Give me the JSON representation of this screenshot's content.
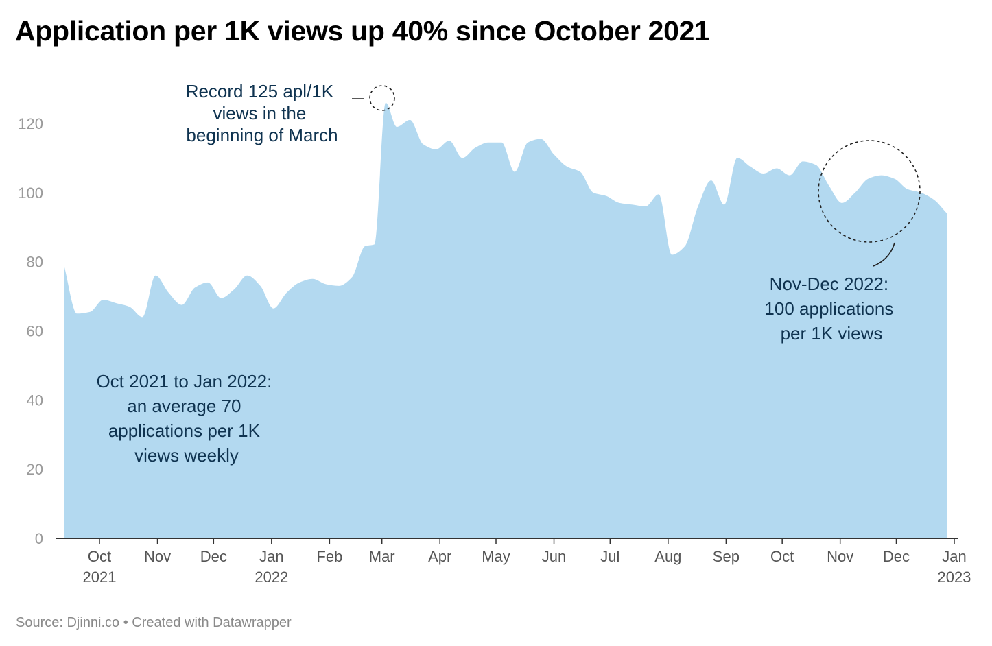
{
  "chart_data": {
    "type": "area",
    "title": "Application per 1K views up 40% since October 2021",
    "xlabel": "",
    "ylabel": "",
    "ylim": [
      0,
      130
    ],
    "yticks": [
      0,
      20,
      40,
      60,
      80,
      100,
      120
    ],
    "grid": false,
    "colors": {
      "area": "#b3d9f0",
      "annotation": "#0f3350",
      "axis": "#333333",
      "tick_text": "#9a9a9a",
      "x_text": "#555555"
    },
    "x_ticks": [
      {
        "date": "2021-10-01",
        "label": "Oct",
        "sublabel": "2021"
      },
      {
        "date": "2021-11-01",
        "label": "Nov"
      },
      {
        "date": "2021-12-01",
        "label": "Dec"
      },
      {
        "date": "2022-01-01",
        "label": "Jan",
        "sublabel": "2022"
      },
      {
        "date": "2022-02-01",
        "label": "Feb"
      },
      {
        "date": "2022-03-01",
        "label": "Mar"
      },
      {
        "date": "2022-04-01",
        "label": "Apr"
      },
      {
        "date": "2022-05-01",
        "label": "May"
      },
      {
        "date": "2022-06-01",
        "label": "Jun"
      },
      {
        "date": "2022-07-01",
        "label": "Jul"
      },
      {
        "date": "2022-08-01",
        "label": "Aug"
      },
      {
        "date": "2022-09-01",
        "label": "Sep"
      },
      {
        "date": "2022-10-01",
        "label": "Oct"
      },
      {
        "date": "2022-11-01",
        "label": "Nov"
      },
      {
        "date": "2022-12-01",
        "label": "Dec"
      },
      {
        "date": "2023-01-01",
        "label": "Jan",
        "sublabel": "2023"
      }
    ],
    "series": [
      {
        "points": [
          {
            "x": "2021-09-12",
            "y": 79
          },
          {
            "x": "2021-09-19",
            "y": 65
          },
          {
            "x": "2021-09-26",
            "y": 65.5
          },
          {
            "x": "2021-10-03",
            "y": 69
          },
          {
            "x": "2021-10-10",
            "y": 68
          },
          {
            "x": "2021-10-17",
            "y": 67
          },
          {
            "x": "2021-10-24",
            "y": 64
          },
          {
            "x": "2021-10-31",
            "y": 76
          },
          {
            "x": "2021-11-07",
            "y": 71
          },
          {
            "x": "2021-11-14",
            "y": 67.5
          },
          {
            "x": "2021-11-21",
            "y": 72.5
          },
          {
            "x": "2021-11-28",
            "y": 74
          },
          {
            "x": "2021-12-05",
            "y": 69.5
          },
          {
            "x": "2021-12-12",
            "y": 72
          },
          {
            "x": "2021-12-19",
            "y": 76
          },
          {
            "x": "2021-12-26",
            "y": 73
          },
          {
            "x": "2022-01-02",
            "y": 66.5
          },
          {
            "x": "2022-01-09",
            "y": 71
          },
          {
            "x": "2022-01-16",
            "y": 74
          },
          {
            "x": "2022-01-23",
            "y": 75
          },
          {
            "x": "2022-01-30",
            "y": 73.5
          },
          {
            "x": "2022-02-06",
            "y": 73
          },
          {
            "x": "2022-02-13",
            "y": 75.5
          },
          {
            "x": "2022-02-20",
            "y": 84.5
          },
          {
            "x": "2022-02-25",
            "y": 85
          },
          {
            "x": "2022-03-03",
            "y": 126
          },
          {
            "x": "2022-03-09",
            "y": 119
          },
          {
            "x": "2022-03-16",
            "y": 121
          },
          {
            "x": "2022-03-23",
            "y": 114
          },
          {
            "x": "2022-03-30",
            "y": 112.5
          },
          {
            "x": "2022-04-06",
            "y": 115
          },
          {
            "x": "2022-04-13",
            "y": 110
          },
          {
            "x": "2022-04-20",
            "y": 113
          },
          {
            "x": "2022-04-27",
            "y": 114.5
          },
          {
            "x": "2022-05-04",
            "y": 114.5
          },
          {
            "x": "2022-05-11",
            "y": 106
          },
          {
            "x": "2022-05-18",
            "y": 114.5
          },
          {
            "x": "2022-05-25",
            "y": 115.5
          },
          {
            "x": "2022-06-01",
            "y": 111
          },
          {
            "x": "2022-06-08",
            "y": 107.5
          },
          {
            "x": "2022-06-15",
            "y": 106
          },
          {
            "x": "2022-06-22",
            "y": 100
          },
          {
            "x": "2022-06-29",
            "y": 99
          },
          {
            "x": "2022-07-06",
            "y": 97
          },
          {
            "x": "2022-07-13",
            "y": 96.5
          },
          {
            "x": "2022-07-20",
            "y": 96
          },
          {
            "x": "2022-07-27",
            "y": 99.5
          },
          {
            "x": "2022-08-03",
            "y": 82
          },
          {
            "x": "2022-08-10",
            "y": 84.5
          },
          {
            "x": "2022-08-17",
            "y": 96
          },
          {
            "x": "2022-08-24",
            "y": 103.5
          },
          {
            "x": "2022-08-31",
            "y": 96.5
          },
          {
            "x": "2022-09-07",
            "y": 110
          },
          {
            "x": "2022-09-14",
            "y": 107.5
          },
          {
            "x": "2022-09-21",
            "y": 105.5
          },
          {
            "x": "2022-09-28",
            "y": 107
          },
          {
            "x": "2022-10-05",
            "y": 105
          },
          {
            "x": "2022-10-12",
            "y": 109
          },
          {
            "x": "2022-10-19",
            "y": 108
          },
          {
            "x": "2022-10-26",
            "y": 102
          },
          {
            "x": "2022-11-02",
            "y": 97
          },
          {
            "x": "2022-11-09",
            "y": 100
          },
          {
            "x": "2022-11-16",
            "y": 104
          },
          {
            "x": "2022-11-23",
            "y": 105
          },
          {
            "x": "2022-11-30",
            "y": 104
          },
          {
            "x": "2022-12-07",
            "y": 101
          },
          {
            "x": "2022-12-14",
            "y": 100
          },
          {
            "x": "2022-12-21",
            "y": 98
          },
          {
            "x": "2022-12-28",
            "y": 94
          }
        ]
      }
    ],
    "annotations": [
      {
        "lines": [
          "Record 125 apl/1K",
          "views in the",
          "beginning of March"
        ]
      },
      {
        "lines": [
          "Nov-Dec 2022:",
          "100 applications",
          "per 1K views"
        ]
      },
      {
        "lines": [
          "Oct 2021 to Jan 2022:",
          "an average 70",
          "applications per 1K",
          "views weekly"
        ]
      }
    ],
    "footer": "Source: Djinni.co • Created with Datawrapper"
  }
}
